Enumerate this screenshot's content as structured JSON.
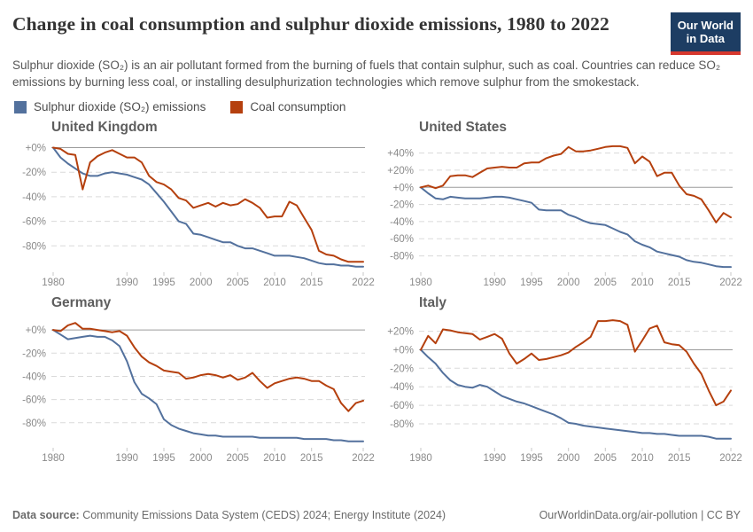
{
  "header": {
    "title": "Change in coal consumption and sulphur dioxide emissions, 1980 to 2022",
    "logo_line1": "Our World",
    "logo_line2": "in Data",
    "logo_bg": "#1d3d63",
    "logo_bar": "#d6382e"
  },
  "subtitle": "Sulphur dioxide (SO₂) is an air pollutant formed from the burning of fuels that contain sulphur, such as coal. Countries can reduce SO₂ emissions by burning less coal, or installing desulphurization technologies which remove sulphur from the smokestack.",
  "legend": [
    {
      "label": "Sulphur dioxide (SO₂) emissions",
      "color": "#53719d"
    },
    {
      "label": "Coal consumption",
      "color": "#b5400e"
    }
  ],
  "footer": {
    "source_label": "Data source:",
    "source_text": " Community Emissions Data System (CEDS) 2024; Energy Institute (2024)",
    "credit": "OurWorldinData.org/air-pollution | CC BY"
  },
  "chart_data": {
    "type": "line",
    "unit": "% change relative to 1980",
    "grid": "dashed horizontal, solid zero line",
    "x_ticks": [
      1980,
      1990,
      1995,
      2000,
      2005,
      2010,
      2015,
      2022
    ],
    "years": [
      1980,
      1981,
      1982,
      1983,
      1984,
      1985,
      1986,
      1987,
      1988,
      1989,
      1990,
      1991,
      1992,
      1993,
      1994,
      1995,
      1996,
      1997,
      1998,
      1999,
      2000,
      2001,
      2002,
      2003,
      2004,
      2005,
      2006,
      2007,
      2008,
      2009,
      2010,
      2011,
      2012,
      2013,
      2014,
      2015,
      2016,
      2017,
      2018,
      2019,
      2020,
      2021,
      2022
    ],
    "series_names": [
      "Sulphur dioxide (SO₂) emissions",
      "Coal consumption"
    ],
    "panels": [
      {
        "title": "United Kingdom",
        "ylim": [
          -100,
          4
        ],
        "yticks": [
          0,
          -20,
          -40,
          -60,
          -80
        ],
        "so2": [
          0,
          -8,
          -13,
          -17,
          -21,
          -23,
          -23,
          -21,
          -20,
          -21,
          -22,
          -24,
          -26,
          -30,
          -37,
          -44,
          -52,
          -60,
          -62,
          -70,
          -71,
          -73,
          -75,
          -77,
          -77,
          -80,
          -82,
          -82,
          -84,
          -86,
          -88,
          -88,
          -88,
          -89,
          -90,
          -92,
          -94,
          -95,
          -95,
          -96,
          -96,
          -97,
          -97
        ],
        "coal": [
          0,
          -1,
          -5,
          -6,
          -34,
          -12,
          -7,
          -4,
          -2,
          -5,
          -8,
          -8,
          -12,
          -23,
          -28,
          -30,
          -34,
          -41,
          -43,
          -49,
          -47,
          -45,
          -48,
          -45,
          -47,
          -46,
          -42,
          -45,
          -49,
          -57,
          -56,
          -56,
          -44,
          -47,
          -57,
          -67,
          -84,
          -87,
          -88,
          -91,
          -93,
          -93,
          -93
        ]
      },
      {
        "title": "United States",
        "ylim": [
          -97,
          52
        ],
        "yticks": [
          40,
          20,
          0,
          -20,
          -40,
          -60,
          -80
        ],
        "so2": [
          0,
          -7,
          -13,
          -14,
          -11,
          -12,
          -13,
          -13,
          -13,
          -12,
          -11,
          -11,
          -12,
          -14,
          -16,
          -18,
          -26,
          -27,
          -27,
          -27,
          -32,
          -35,
          -39,
          -42,
          -43,
          -44,
          -48,
          -52,
          -55,
          -63,
          -67,
          -70,
          -75,
          -77,
          -79,
          -81,
          -85,
          -87,
          -88,
          -90,
          -92,
          -93,
          -93
        ],
        "coal": [
          0,
          2,
          -1,
          2,
          13,
          14,
          14,
          12,
          17,
          22,
          23,
          24,
          23,
          23,
          28,
          29,
          29,
          34,
          37,
          39,
          47,
          42,
          42,
          43,
          45,
          47,
          48,
          48,
          46,
          28,
          36,
          30,
          13,
          17,
          17,
          2,
          -8,
          -10,
          -14,
          -27,
          -41,
          -30,
          -35
        ]
      },
      {
        "title": "Germany",
        "ylim": [
          -100,
          10
        ],
        "yticks": [
          0,
          -20,
          -40,
          -60,
          -80
        ],
        "so2": [
          0,
          -4,
          -8,
          -7,
          -6,
          -5,
          -6,
          -6,
          -9,
          -14,
          -27,
          -45,
          -55,
          -59,
          -64,
          -77,
          -82,
          -85,
          -87,
          -89,
          -90,
          -91,
          -91,
          -92,
          -92,
          -92,
          -92,
          -92,
          -93,
          -93,
          -93,
          -93,
          -93,
          -93,
          -94,
          -94,
          -94,
          -94,
          -95,
          -95,
          -96,
          -96,
          -96
        ],
        "coal": [
          0,
          -1,
          4,
          6,
          1,
          1,
          0,
          -1,
          -2,
          -1,
          -5,
          -15,
          -23,
          -28,
          -31,
          -35,
          -36,
          -37,
          -42,
          -41,
          -39,
          -38,
          -39,
          -41,
          -39,
          -43,
          -41,
          -37,
          -44,
          -50,
          -46,
          -44,
          -42,
          -41,
          -42,
          -44,
          -44,
          -48,
          -51,
          -63,
          -70,
          -63,
          -61
        ]
      },
      {
        "title": "Italy",
        "ylim": [
          -104,
          34
        ],
        "yticks": [
          20,
          0,
          -20,
          -40,
          -60,
          -80
        ],
        "so2": [
          0,
          -8,
          -15,
          -25,
          -33,
          -38,
          -40,
          -41,
          -38,
          -40,
          -45,
          -50,
          -53,
          -56,
          -58,
          -61,
          -64,
          -67,
          -70,
          -74,
          -79,
          -80,
          -82,
          -83,
          -84,
          -85,
          -86,
          -87,
          -88,
          -89,
          -90,
          -90,
          -91,
          -91,
          -92,
          -93,
          -93,
          -93,
          -93,
          -94,
          -96,
          -96,
          -96
        ],
        "coal": [
          0,
          15,
          7,
          22,
          21,
          19,
          18,
          17,
          11,
          14,
          17,
          12,
          -4,
          -15,
          -10,
          -4,
          -11,
          -10,
          -8,
          -6,
          -3,
          3,
          8,
          14,
          31,
          31,
          32,
          31,
          27,
          -2,
          10,
          23,
          26,
          8,
          6,
          5,
          -2,
          -15,
          -26,
          -44,
          -60,
          -56,
          -44
        ]
      }
    ]
  }
}
